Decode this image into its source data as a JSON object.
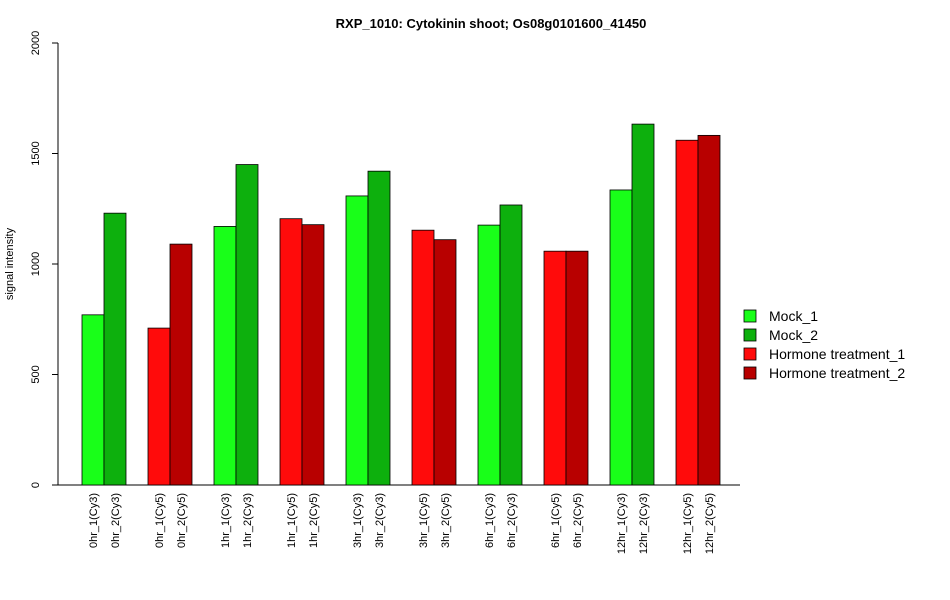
{
  "chart_data": {
    "type": "bar",
    "title": "RXP_1010: Cytokinin shoot; Os08g0101600_41450",
    "xlabel": "",
    "ylabel": "signal intensity",
    "ylim": [
      0,
      2000
    ],
    "yticks": [
      0,
      500,
      1000,
      1500,
      2000
    ],
    "grid": false,
    "legend_position": "right",
    "series": [
      {
        "name": "Mock_1",
        "color": "#19FF19"
      },
      {
        "name": "Mock_2",
        "color": "#0DB00D"
      },
      {
        "name": "Hormone treatment_1",
        "color": "#FF0B0B"
      },
      {
        "name": "Hormone treatment_2",
        "color": "#B80000"
      }
    ],
    "groups": [
      {
        "bars": [
          {
            "label": "0hr_1(Cy3)",
            "value": 770,
            "series": 0
          },
          {
            "label": "0hr_2(Cy3)",
            "value": 1230,
            "series": 1
          }
        ]
      },
      {
        "bars": [
          {
            "label": "0hr_1(Cy5)",
            "value": 710,
            "series": 2
          },
          {
            "label": "0hr_2(Cy5)",
            "value": 1090,
            "series": 3
          }
        ]
      },
      {
        "bars": [
          {
            "label": "1hr_1(Cy3)",
            "value": 1170,
            "series": 0
          },
          {
            "label": "1hr_2(Cy3)",
            "value": 1450,
            "series": 1
          }
        ]
      },
      {
        "bars": [
          {
            "label": "1hr_1(Cy5)",
            "value": 1205,
            "series": 2
          },
          {
            "label": "1hr_2(Cy5)",
            "value": 1178,
            "series": 3
          }
        ]
      },
      {
        "bars": [
          {
            "label": "3hr_1(Cy3)",
            "value": 1308,
            "series": 0
          },
          {
            "label": "3hr_2(Cy3)",
            "value": 1420,
            "series": 1
          }
        ]
      },
      {
        "bars": [
          {
            "label": "3hr_1(Cy5)",
            "value": 1153,
            "series": 2
          },
          {
            "label": "3hr_2(Cy5)",
            "value": 1110,
            "series": 3
          }
        ]
      },
      {
        "bars": [
          {
            "label": "6hr_1(Cy3)",
            "value": 1176,
            "series": 0
          },
          {
            "label": "6hr_2(Cy3)",
            "value": 1267,
            "series": 1
          }
        ]
      },
      {
        "bars": [
          {
            "label": "6hr_1(Cy5)",
            "value": 1058,
            "series": 2
          },
          {
            "label": "6hr_2(Cy5)",
            "value": 1058,
            "series": 3
          }
        ]
      },
      {
        "bars": [
          {
            "label": "12hr_1(Cy3)",
            "value": 1335,
            "series": 0
          },
          {
            "label": "12hr_2(Cy3)",
            "value": 1633,
            "series": 1
          }
        ]
      },
      {
        "bars": [
          {
            "label": "12hr_1(Cy5)",
            "value": 1560,
            "series": 2
          },
          {
            "label": "12hr_2(Cy5)",
            "value": 1582,
            "series": 3
          }
        ]
      }
    ]
  }
}
